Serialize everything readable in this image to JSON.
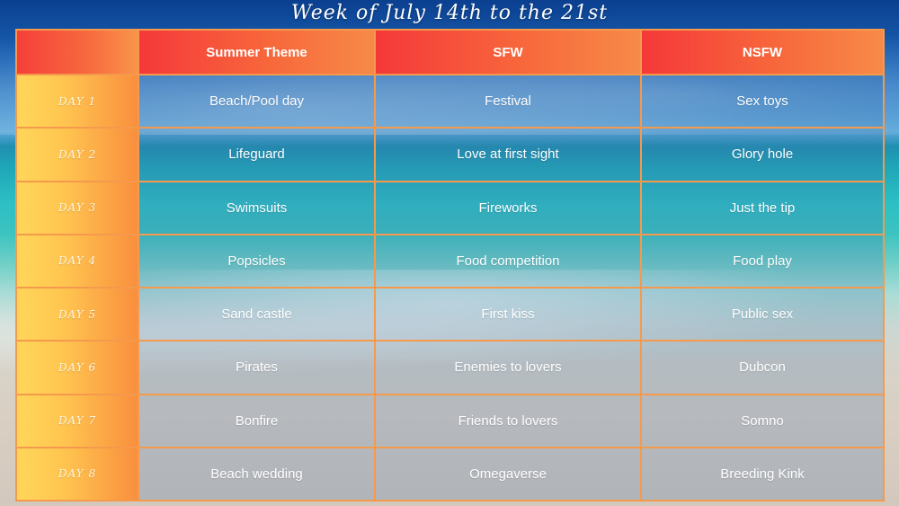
{
  "title": "Week of July 14th to the 21st",
  "colors": {
    "header_start": "#f5383a",
    "header_end": "#f78a48",
    "day_start": "#ffd65a",
    "day_end": "#f98f3e",
    "grid_line": "#f59a4d"
  },
  "table": {
    "headers": [
      "",
      "Summer Theme",
      "SFW",
      "NSFW"
    ],
    "rows": [
      {
        "day": "DAY 1",
        "theme": "Beach/Pool day",
        "sfw": "Festival",
        "nsfw": "Sex toys"
      },
      {
        "day": "DAY 2",
        "theme": "Lifeguard",
        "sfw": "Love at first sight",
        "nsfw": "Glory hole"
      },
      {
        "day": "DAY 3",
        "theme": "Swimsuits",
        "sfw": "Fireworks",
        "nsfw": "Just the tip"
      },
      {
        "day": "DAY 4",
        "theme": "Popsicles",
        "sfw": "Food competition",
        "nsfw": "Food play"
      },
      {
        "day": "DAY 5",
        "theme": "Sand castle",
        "sfw": "First kiss",
        "nsfw": "Public sex"
      },
      {
        "day": "DAY 6",
        "theme": "Pirates",
        "sfw": "Enemies to lovers",
        "nsfw": "Dubcon"
      },
      {
        "day": "DAY 7",
        "theme": "Bonfire",
        "sfw": "Friends to lovers",
        "nsfw": "Somno"
      },
      {
        "day": "DAY 8",
        "theme": "Beach wedding",
        "sfw": "Omegaverse",
        "nsfw": "Breeding Kink"
      }
    ]
  }
}
